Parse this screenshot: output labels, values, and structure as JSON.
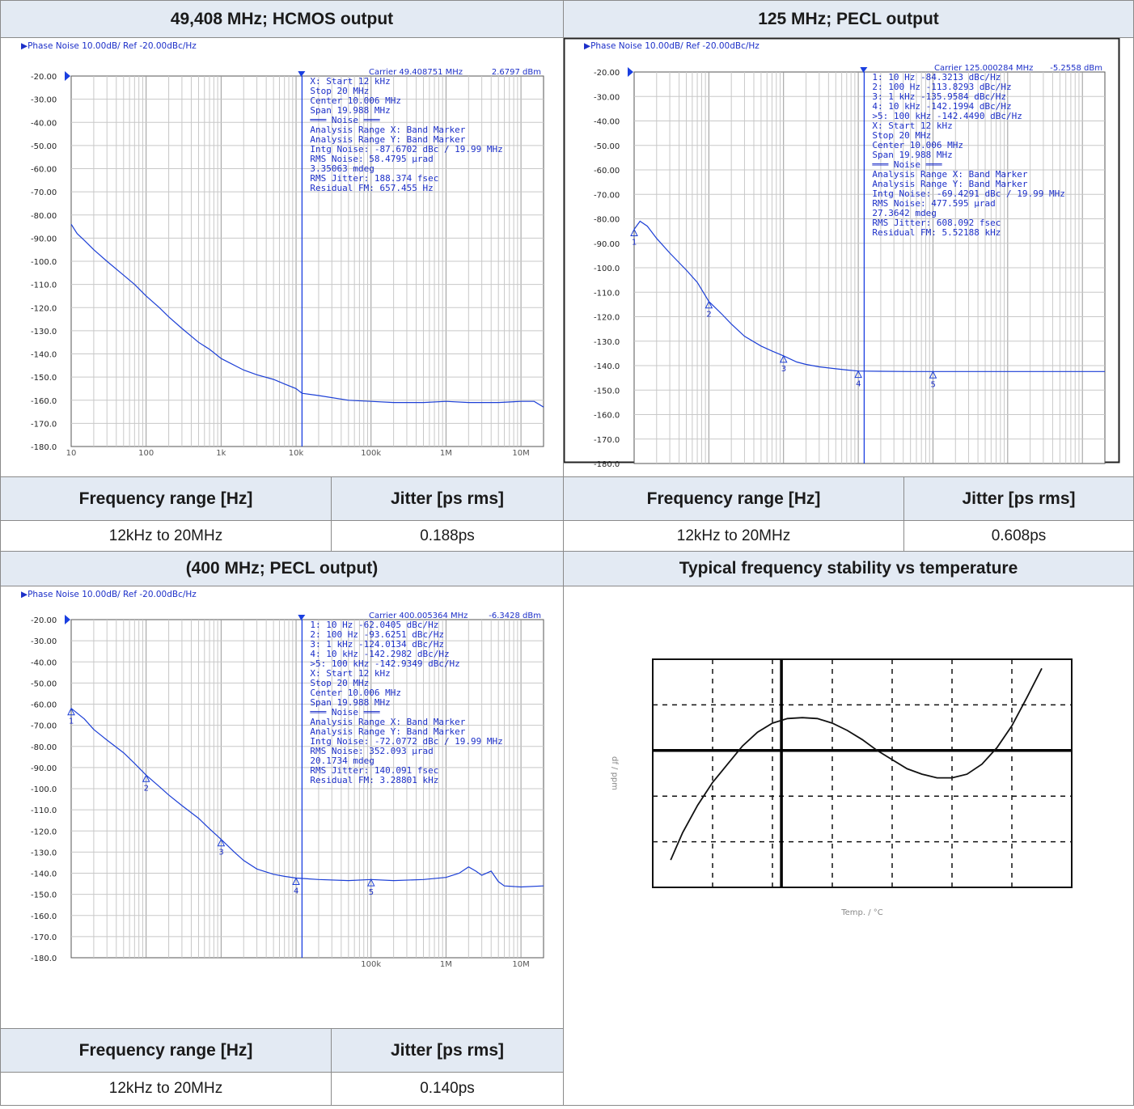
{
  "colors": {
    "plot_blue": "#1c3fd6",
    "ann_blue": "#1c2fc8",
    "header_bg": "#e3eaf3",
    "grid_gray": "#c8c8c8"
  },
  "panels": {
    "p1": {
      "title": "49,408 MHz; HCMOS output"
    },
    "p2": {
      "title": "125 MHz; PECL output"
    },
    "p3": {
      "title": "(400 MHz; PECL output)"
    },
    "p4": {
      "title": "Typical frequency stability vs temperature"
    }
  },
  "tables": {
    "t1": {
      "col1": "Frequency range [Hz]",
      "col2": "Jitter [ps rms]",
      "range": "12kHz to 20MHz",
      "jitter": "0.188ps"
    },
    "t2": {
      "col1": "Frequency range [Hz]",
      "col2": "Jitter [ps rms]",
      "range": "12kHz to 20MHz",
      "jitter": "0.608ps"
    },
    "t3": {
      "col1": "Frequency range [Hz]",
      "col2": "Jitter [ps rms]",
      "range": "12kHz to 20MHz",
      "jitter": "0.140ps"
    }
  },
  "chart_data": [
    {
      "type": "line",
      "id": "pn49",
      "header": "▶Phase Noise 10.00dB/ Ref -20.00dBc/Hz",
      "carrier_label": "Carrier 49.408751 MHz",
      "power_label": "2.6797 dBm",
      "ref_label": "-20.00",
      "x_scale": "log",
      "xlim": [
        10,
        20000000
      ],
      "ylim": [
        -180,
        -20
      ],
      "x_ticks": [
        {
          "v": 10,
          "label": "10"
        },
        {
          "v": 100,
          "label": "100"
        },
        {
          "v": 1000,
          "label": "1k"
        },
        {
          "v": 10000,
          "label": "10k"
        },
        {
          "v": 100000,
          "label": "100k"
        },
        {
          "v": 1000000,
          "label": "1M"
        },
        {
          "v": 10000000,
          "label": "10M"
        }
      ],
      "y_ticks": [
        "-30.00",
        "-40.00",
        "-50.00",
        "-60.00",
        "-70.00",
        "-80.00",
        "-90.00",
        "-100.0",
        "-110.0",
        "-120.0",
        "-130.0",
        "-140.0",
        "-150.0",
        "-160.0",
        "-170.0",
        "-180.0"
      ],
      "band_start": 12000,
      "grid": true,
      "info_lines": [
        "X: Start 12 kHz",
        "    Stop 20 MHz",
        "  Center 10.006 MHz",
        "    Span 19.988 MHz",
        "═══ Noise ═══",
        "Analysis Range X: Band Marker",
        "Analysis Range Y: Band Marker",
        "Intg Noise: -87.6702 dBc / 19.99 MHz",
        " RMS Noise: 58.4795 µrad",
        "            3.35063 mdeg",
        "RMS Jitter: 188.374 fsec",
        "Residual FM: 657.455 Hz"
      ],
      "series": [
        {
          "x": [
            10,
            12,
            15,
            20,
            30,
            50,
            70,
            100,
            150,
            200,
            300,
            500,
            700,
            1000,
            2000,
            3000,
            5000,
            7000,
            10000,
            12000,
            20000,
            50000,
            100000,
            200000,
            500000,
            1000000,
            2000000,
            5000000,
            10000000,
            15000000,
            20000000
          ],
          "y": [
            -84,
            -88,
            -91,
            -95,
            -100,
            -106,
            -110,
            -115,
            -120,
            -124,
            -129,
            -135,
            -138,
            -142,
            -147,
            -149,
            -151,
            -153,
            -155,
            -157,
            -158,
            -160,
            -160.5,
            -161,
            -161,
            -160.5,
            -161,
            -161,
            -160.5,
            -160.5,
            -163
          ]
        }
      ],
      "markers": []
    },
    {
      "type": "line",
      "id": "pn125",
      "header": "▶Phase Noise 10.00dB/ Ref -20.00dBc/Hz",
      "carrier_label": "Carrier 125.000284 MHz",
      "power_label": "-5.2558 dBm",
      "ref_label": "-20.00",
      "x_scale": "log",
      "xlim": [
        10,
        20000000
      ],
      "ylim": [
        -180,
        -20
      ],
      "x_ticks": [],
      "y_ticks": [
        "-30.00",
        "-40.00",
        "-50.00",
        "-60.00",
        "-70.00",
        "-80.00",
        "-90.00",
        "-100.0",
        "-110.0",
        "-120.0",
        "-130.0",
        "-140.0",
        "-150.0",
        "-160.0",
        "-170.0",
        "-180.0"
      ],
      "band_start": 12000,
      "grid": true,
      "info_lines": [
        "1:  10 Hz      -84.3213 dBc/Hz",
        "2:  100 Hz    -113.8293 dBc/Hz",
        "3:  1 kHz     -135.9584 dBc/Hz",
        "4:  10 kHz    -142.1994 dBc/Hz",
        ">5:  100 kHz  -142.4490 dBc/Hz",
        "X: Start 12 kHz",
        "    Stop 20 MHz",
        "  Center 10.006 MHz",
        "    Span 19.988 MHz",
        "═══ Noise ═══",
        "Analysis Range X: Band Marker",
        "Analysis Range Y: Band Marker",
        "Intg Noise: -69.4291 dBc / 19.99 MHz",
        " RMS Noise: 477.595 µrad",
        "            27.3642 mdeg",
        "RMS Jitter: 608.092 fsec",
        "Residual FM: 5.52188 kHz"
      ],
      "series": [
        {
          "x": [
            10,
            12,
            15,
            20,
            30,
            50,
            70,
            100,
            150,
            200,
            300,
            500,
            700,
            1000,
            1500,
            2000,
            3000,
            5000,
            7000,
            10000,
            20000,
            50000,
            100000,
            1000000,
            10000000,
            20000000
          ],
          "y": [
            -84.3,
            -81,
            -83,
            -88,
            -94,
            -101,
            -106,
            -113.8,
            -119,
            -123,
            -128,
            -132,
            -134,
            -136,
            -138.5,
            -139.5,
            -140.5,
            -141.3,
            -141.8,
            -142.2,
            -142.3,
            -142.4,
            -142.4,
            -142.4,
            -142.4,
            -142.4
          ]
        }
      ],
      "markers": [
        {
          "label": "1",
          "x": 10,
          "y": -84.3
        },
        {
          "label": "2",
          "x": 100,
          "y": -113.8
        },
        {
          "label": "3",
          "x": 1000,
          "y": -136
        },
        {
          "label": "4",
          "x": 10000,
          "y": -142.2
        },
        {
          "label": "5",
          "x": 100000,
          "y": -142.4
        }
      ]
    },
    {
      "type": "line",
      "id": "pn400",
      "header": "▶Phase Noise 10.00dB/ Ref -20.00dBc/Hz",
      "carrier_label": "Carrier 400.005364 MHz",
      "power_label": "-6.3428 dBm",
      "ref_label": "-20.00",
      "x_scale": "log",
      "xlim": [
        10,
        20000000
      ],
      "ylim": [
        -180,
        -20
      ],
      "x_ticks": [
        {
          "v": 100000,
          "label": "100k"
        },
        {
          "v": 1000000,
          "label": "1M"
        },
        {
          "v": 10000000,
          "label": "10M"
        }
      ],
      "y_ticks": [
        "-30.00",
        "-40.00",
        "-50.00",
        "-60.00",
        "-70.00",
        "-80.00",
        "-90.00",
        "-100.0",
        "-110.0",
        "-120.0",
        "-130.0",
        "-140.0",
        "-150.0",
        "-160.0",
        "-170.0",
        "-180.0"
      ],
      "band_start": 12000,
      "grid": true,
      "info_lines": [
        "1:  10 Hz      -62.0405 dBc/Hz",
        "2:  100 Hz     -93.6251 dBc/Hz",
        "3:  1 kHz     -124.0134 dBc/Hz",
        "4:  10 kHz    -142.2982 dBc/Hz",
        ">5:  100 kHz  -142.9349 dBc/Hz",
        "X: Start 12 kHz",
        "    Stop 20 MHz",
        "  Center 10.006 MHz",
        "    Span 19.988 MHz",
        "═══ Noise ═══",
        "Analysis Range X: Band Marker",
        "Analysis Range Y: Band Marker",
        "Intg Noise: -72.0772 dBc / 19.99 MHz",
        " RMS Noise: 352.093 µrad",
        "            20.1734 mdeg",
        "RMS Jitter: 140.091 fsec",
        "Residual FM: 3.28801 kHz"
      ],
      "series": [
        {
          "x": [
            10,
            15,
            20,
            30,
            50,
            70,
            100,
            150,
            200,
            300,
            500,
            700,
            1000,
            1500,
            2000,
            3000,
            5000,
            7000,
            10000,
            20000,
            50000,
            100000,
            200000,
            500000,
            1000000,
            1500000,
            2000000,
            2500000,
            3000000,
            4000000,
            5000000,
            6000000,
            10000000,
            20000000
          ],
          "y": [
            -62,
            -67,
            -72,
            -77,
            -83,
            -88,
            -93.6,
            -99,
            -103,
            -108,
            -114,
            -119,
            -124,
            -130,
            -134,
            -138,
            -140.5,
            -141.5,
            -142.3,
            -143,
            -143.5,
            -143,
            -143.5,
            -143,
            -142,
            -140,
            -137,
            -139,
            -141,
            -139,
            -144,
            -146,
            -146.5,
            -146
          ]
        }
      ],
      "markers": [
        {
          "label": "1",
          "x": 10,
          "y": -62
        },
        {
          "label": "2",
          "x": 100,
          "y": -93.6
        },
        {
          "label": "3",
          "x": 1000,
          "y": -124
        },
        {
          "label": "4",
          "x": 10000,
          "y": -142.3
        },
        {
          "label": "5",
          "x": 100000,
          "y": -142.9
        }
      ]
    },
    {
      "type": "line",
      "id": "stability",
      "xlabel": "Temp. / °C",
      "ylabel": "df / ppm",
      "xlim": [
        -40,
        100
      ],
      "ylim": [
        -15,
        10
      ],
      "grid": true,
      "series": [
        {
          "x": [
            -34,
            -30,
            -25,
            -20,
            -15,
            -10,
            -5,
            0,
            5,
            10,
            15,
            20,
            25,
            30,
            35,
            40,
            45,
            50,
            55,
            60,
            65,
            70,
            75,
            80,
            85,
            90
          ],
          "y": [
            -12,
            -9,
            -6,
            -3.5,
            -1.5,
            0.5,
            2,
            3,
            3.5,
            3.6,
            3.5,
            3,
            2.2,
            1.2,
            0,
            -1,
            -2,
            -2.6,
            -3,
            -3,
            -2.6,
            -1.5,
            0.3,
            2.7,
            5.8,
            9
          ]
        }
      ]
    }
  ]
}
